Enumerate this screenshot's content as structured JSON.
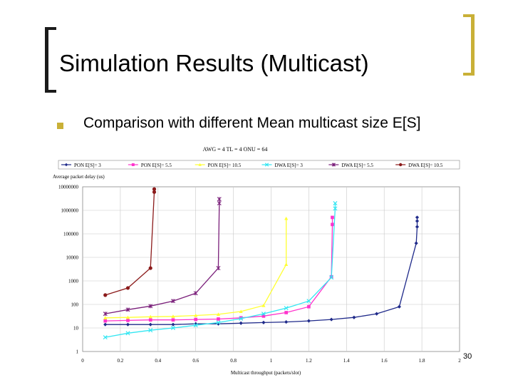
{
  "slide": {
    "title": "Simulation Results (Multicast)",
    "bullet": "Comparison with different Mean multicast size E[S]",
    "page_number": "30",
    "accent_color": "#c9b037"
  },
  "chart_data": {
    "type": "line",
    "title": "AWG = 4 TL = 4 ONU = 64",
    "xlabel": "Multicast throughput (packets/slot)",
    "ylabel": "Average packet delay (us)",
    "yscale": "log",
    "xlim": [
      0,
      2
    ],
    "ylim": [
      1,
      10000000
    ],
    "xticks": [
      "0",
      "0.2",
      "0.4",
      "0.6",
      "0.8",
      "1",
      "1.2",
      "1.4",
      "1.6",
      "1.8",
      "2"
    ],
    "yticks": [
      "1",
      "10",
      "100",
      "1000",
      "10000",
      "100000",
      "1000000",
      "10000000"
    ],
    "grid": true,
    "series": [
      {
        "name": "PON E[S]= 3",
        "color": "#1f2a8a",
        "marker": "diamond",
        "x": [
          0.12,
          0.24,
          0.36,
          0.48,
          0.6,
          0.72,
          0.84,
          0.96,
          1.08,
          1.2,
          1.32,
          1.44,
          1.56,
          1.68,
          1.77,
          1.775,
          1.775,
          1.775
        ],
        "y": [
          14,
          14,
          14,
          14,
          15,
          15,
          16,
          17,
          18,
          20,
          23,
          28,
          40,
          80,
          40000,
          200000,
          350000,
          500000
        ]
      },
      {
        "name": "PON E[S]= 5.5",
        "color": "#ff33cc",
        "marker": "square",
        "x": [
          0.12,
          0.24,
          0.36,
          0.48,
          0.6,
          0.72,
          0.84,
          0.96,
          1.08,
          1.2,
          1.32,
          1.325,
          1.325
        ],
        "y": [
          20,
          21,
          22,
          22,
          23,
          24,
          27,
          32,
          45,
          80,
          1500,
          250000,
          500000
        ]
      },
      {
        "name": "PON E[S]= 10.5",
        "color": "#ffff33",
        "marker": "triangle",
        "x": [
          0.12,
          0.24,
          0.36,
          0.48,
          0.6,
          0.72,
          0.84,
          0.96,
          1.08,
          1.08
        ],
        "y": [
          27,
          28,
          30,
          31,
          34,
          38,
          50,
          90,
          5000,
          450000
        ]
      },
      {
        "name": "DWA E[S]= 3",
        "color": "#33e6f2",
        "marker": "x",
        "x": [
          0.12,
          0.24,
          0.36,
          0.48,
          0.6,
          0.72,
          0.84,
          0.96,
          1.08,
          1.2,
          1.32,
          1.34,
          1.34
        ],
        "y": [
          4,
          6,
          8,
          10,
          13,
          17,
          25,
          40,
          70,
          140,
          1400,
          1200000,
          2000000
        ]
      },
      {
        "name": "DWA E[S]= 5.5",
        "color": "#7a1f7a",
        "marker": "star",
        "x": [
          0.12,
          0.24,
          0.36,
          0.48,
          0.6,
          0.72,
          0.725,
          0.725
        ],
        "y": [
          40,
          60,
          85,
          140,
          300,
          3500,
          2000000,
          3000000
        ]
      },
      {
        "name": "DWA E[S]= 10.5",
        "color": "#8b1a1a",
        "marker": "circle",
        "x": [
          0.12,
          0.24,
          0.36,
          0.38,
          0.38
        ],
        "y": [
          250,
          500,
          3500,
          6000000,
          8000000
        ]
      }
    ]
  }
}
